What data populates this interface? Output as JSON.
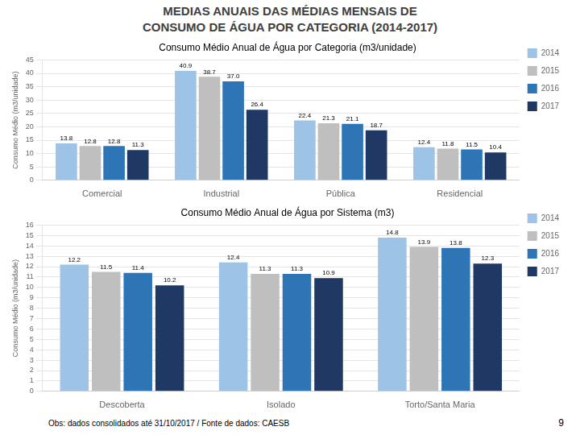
{
  "title": "MEDIAS ANUAIS DAS MÉDIAS MENSAIS DE",
  "subtitle": "CONSUMO DE ÁGUA POR CATEGORIA (2014-2017)",
  "annotations": [
    "Obs: dados consolidados até 31/10/2017 / Fonte de dados: CAESB",
    "9"
  ],
  "chart_data": [
    {
      "type": "bar",
      "title": "Consumo Médio Anual de Água por Categoria (m3/unidade)",
      "ylabel": "Consumo Médio (m3/unidade)",
      "categories": [
        "Comercial",
        "Industrial",
        "Pública",
        "Residencial"
      ],
      "series": [
        {
          "name": "2014",
          "color": "#9DC3E6",
          "values": [
            13.8,
            40.9,
            22.4,
            12.4
          ],
          "value_labels": [
            "13.8",
            "40.9",
            "22.4",
            "12.4"
          ]
        },
        {
          "name": "2015",
          "color": "#BFBFBF",
          "values": [
            12.8,
            38.7,
            21.3,
            11.8
          ],
          "value_labels": [
            "12.8",
            "38.7",
            "21.3",
            "11.8"
          ]
        },
        {
          "name": "2016",
          "color": "#2E75B6",
          "values": [
            12.8,
            37.0,
            21.1,
            11.5
          ],
          "value_labels": [
            "12.8",
            "37.0",
            "21.1",
            "11.5"
          ]
        },
        {
          "name": "2017",
          "color": "#1F3864",
          "values": [
            11.3,
            26.4,
            18.7,
            10.4
          ],
          "value_labels": [
            "11.3",
            "26.4",
            "18.7",
            "10.4"
          ]
        }
      ],
      "ylim": [
        0,
        45
      ],
      "yticks": [
        0,
        5,
        10,
        15,
        20,
        25,
        30,
        35,
        40,
        45
      ],
      "grid": true,
      "legend": "right",
      "data_labels": true
    },
    {
      "type": "bar",
      "title": "Consumo Médio Anual de Água por Sistema (m3)",
      "ylabel": "Consumo Médio (m3/unidade)",
      "categories": [
        "Descoberta",
        "Isolado",
        "Torto/Santa Maria"
      ],
      "series": [
        {
          "name": "2014",
          "color": "#9DC3E6",
          "values": [
            12.2,
            12.4,
            14.8
          ],
          "value_labels": [
            "12.2",
            "12.4",
            "14.8"
          ]
        },
        {
          "name": "2015",
          "color": "#BFBFBF",
          "values": [
            11.5,
            11.3,
            13.9
          ],
          "value_labels": [
            "11.5",
            "11.3",
            "13.9"
          ]
        },
        {
          "name": "2016",
          "color": "#2E75B6",
          "values": [
            11.4,
            11.3,
            13.8
          ],
          "value_labels": [
            "11.4",
            "11.3",
            "13.8"
          ]
        },
        {
          "name": "2017",
          "color": "#1F3864",
          "values": [
            10.2,
            10.9,
            12.3
          ],
          "value_labels": [
            "10.2",
            "10.9",
            "12.3"
          ]
        }
      ],
      "ylim": [
        0,
        16
      ],
      "yticks": [
        0,
        1,
        2,
        3,
        4,
        5,
        6,
        7,
        8,
        9,
        10,
        11,
        12,
        13,
        14,
        15,
        16
      ],
      "grid": true,
      "legend": "right",
      "data_labels": true
    }
  ]
}
